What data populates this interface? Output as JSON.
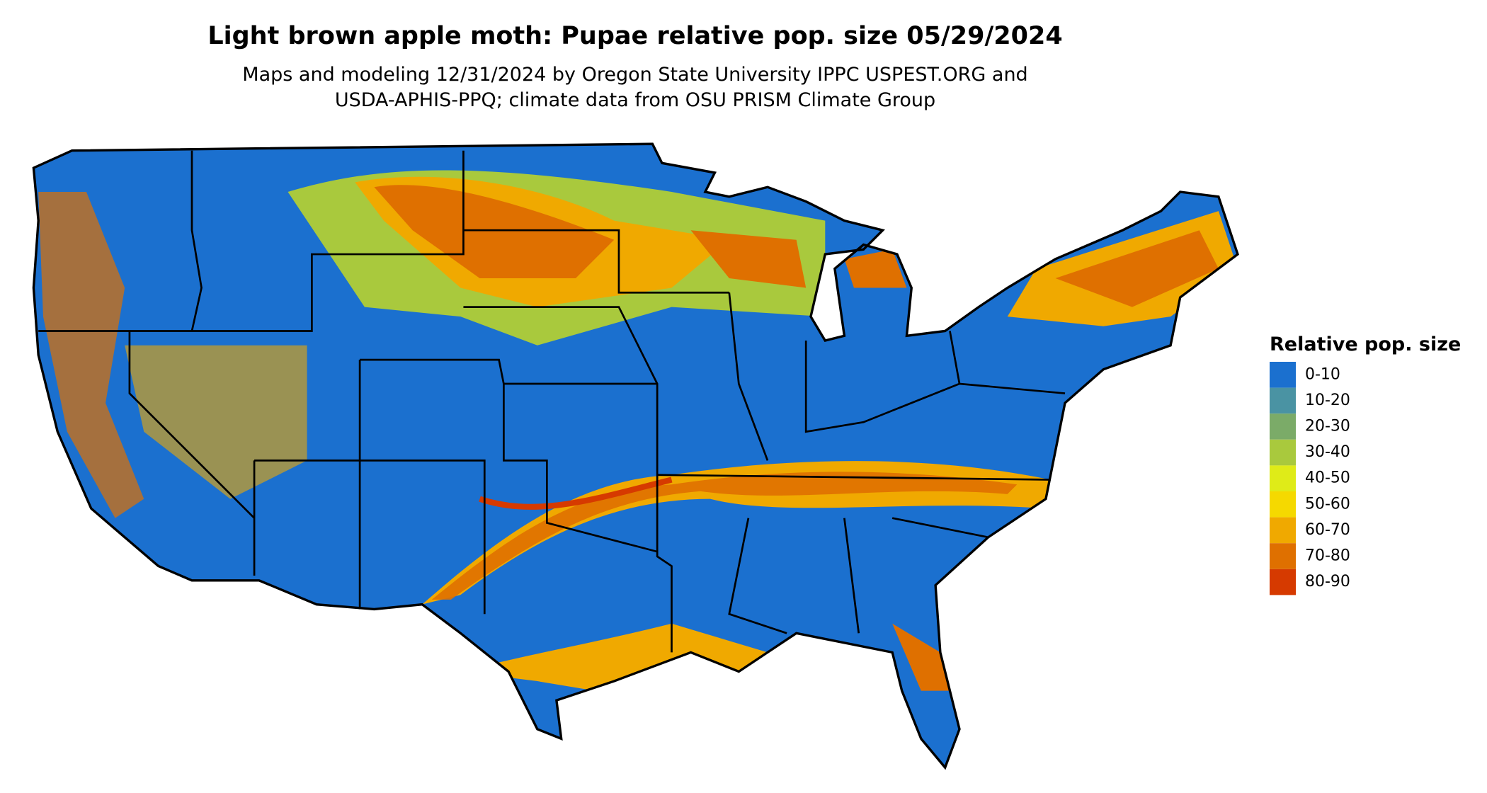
{
  "title": "Light brown apple moth: Pupae relative pop. size 05/29/2024",
  "subtitle": [
    "Maps and modeling 12/31/2024 by Oregon State University IPPC USPEST.ORG and",
    "USDA-APHIS-PPQ; climate data from OSU PRISM Climate Group"
  ],
  "legend": {
    "title": "Relative pop. size",
    "items": [
      {
        "label": "0-10",
        "color": "#1b70cf"
      },
      {
        "label": "10-20",
        "color": "#4a93a3"
      },
      {
        "label": "20-30",
        "color": "#7bab68"
      },
      {
        "label": "30-40",
        "color": "#a9c93d"
      },
      {
        "label": "40-50",
        "color": "#dfeb18"
      },
      {
        "label": "50-60",
        "color": "#f5d900"
      },
      {
        "label": "60-70",
        "color": "#f0a900"
      },
      {
        "label": "70-80",
        "color": "#df7000"
      },
      {
        "label": "80-90",
        "color": "#d63a00"
      }
    ]
  }
}
